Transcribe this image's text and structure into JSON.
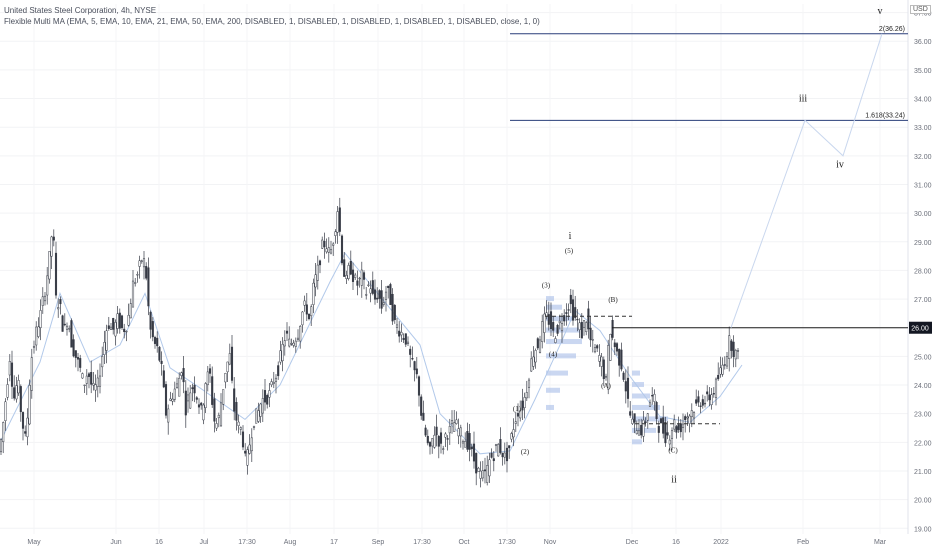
{
  "header": {
    "title": "United States Steel Corporation, 4h, NYSE",
    "indicator": "Flexible Multi MA (EMA, 5, EMA, 10, EMA, 21, EMA, 50, EMA, 200, DISABLED, 1, DISABLED, 1, DISABLED, 1, DISABLED, 1, DISABLED, close, 1, 0)"
  },
  "currency": "USD",
  "colors": {
    "up": "#26a69a",
    "down": "#ef5350",
    "candle": "#363a45",
    "ema": "#b2c9ea",
    "target_line": "#2a3f7a",
    "resistance_line": "#1b1b1b",
    "volume_profile": "#9fb6e6",
    "price_tag_bg": "#131722",
    "price_tag_text": "#ffffff"
  },
  "chart_data": {
    "type": "candlestick",
    "y_axis": {
      "range": [
        18.8,
        37.3
      ],
      "ticks": [
        "19.00",
        "20.00",
        "21.00",
        "22.00",
        "23.00",
        "24.00",
        "25.00",
        "26.00",
        "27.00",
        "28.00",
        "29.00",
        "30.00",
        "31.00",
        "32.00",
        "33.00",
        "34.00",
        "35.00",
        "36.00",
        "37.00"
      ]
    },
    "x_axis": {
      "ticks": [
        "May",
        "Jun",
        "16",
        "Jul",
        "17:30",
        "Aug",
        "17",
        "Sep",
        "17:30",
        "Oct",
        "17:30",
        "Nov",
        "Dec",
        "16",
        "2022",
        "Feb",
        "Mar"
      ]
    },
    "price_path": [
      [
        0,
        21.5
      ],
      [
        4,
        22.2
      ],
      [
        8,
        23.6
      ],
      [
        12,
        25.0
      ],
      [
        16,
        23.5
      ],
      [
        20,
        24.2
      ],
      [
        24,
        22.8
      ],
      [
        28,
        22.0
      ],
      [
        33,
        24.8
      ],
      [
        38,
        25.8
      ],
      [
        43,
        26.5
      ],
      [
        48,
        27.5
      ],
      [
        53,
        28.8
      ],
      [
        55,
        29.8
      ],
      [
        58,
        27.0
      ],
      [
        62,
        26.8
      ],
      [
        66,
        25.8
      ],
      [
        70,
        26.4
      ],
      [
        74,
        25.4
      ],
      [
        78,
        25.0
      ],
      [
        82,
        24.6
      ],
      [
        86,
        24.0
      ],
      [
        90,
        24.5
      ],
      [
        95,
        23.8
      ],
      [
        100,
        24.0
      ],
      [
        105,
        25.2
      ],
      [
        110,
        26.2
      ],
      [
        115,
        25.9
      ],
      [
        120,
        26.3
      ],
      [
        125,
        25.9
      ],
      [
        130,
        26.2
      ],
      [
        135,
        27.5
      ],
      [
        140,
        27.9
      ],
      [
        145,
        28.5
      ],
      [
        148,
        28.0
      ],
      [
        152,
        26.0
      ],
      [
        156,
        25.5
      ],
      [
        160,
        25.2
      ],
      [
        164,
        24.5
      ],
      [
        168,
        23.0
      ],
      [
        172,
        23.4
      ],
      [
        176,
        23.8
      ],
      [
        180,
        24.0
      ],
      [
        184,
        24.7
      ],
      [
        188,
        23.2
      ],
      [
        192,
        23.8
      ],
      [
        196,
        24.0
      ],
      [
        200,
        23.5
      ],
      [
        204,
        23.0
      ],
      [
        208,
        24.2
      ],
      [
        212,
        24.4
      ],
      [
        216,
        22.8
      ],
      [
        220,
        22.6
      ],
      [
        224,
        23.6
      ],
      [
        228,
        24.6
      ],
      [
        232,
        25.0
      ],
      [
        236,
        23.2
      ],
      [
        240,
        22.6
      ],
      [
        244,
        22.4
      ],
      [
        248,
        21.2
      ],
      [
        252,
        22.0
      ],
      [
        256,
        22.8
      ],
      [
        260,
        23.0
      ],
      [
        264,
        23.5
      ],
      [
        268,
        23.5
      ],
      [
        272,
        23.7
      ],
      [
        276,
        24.2
      ],
      [
        280,
        24.5
      ],
      [
        284,
        25.2
      ],
      [
        288,
        25.8
      ],
      [
        292,
        25.4
      ],
      [
        296,
        25.6
      ],
      [
        300,
        25.8
      ],
      [
        304,
        26.5
      ],
      [
        308,
        26.8
      ],
      [
        312,
        26.2
      ],
      [
        316,
        27.5
      ],
      [
        320,
        28.0
      ],
      [
        324,
        28.8
      ],
      [
        328,
        29.0
      ],
      [
        332,
        28.5
      ],
      [
        336,
        29.2
      ],
      [
        340,
        30.2
      ],
      [
        344,
        28.5
      ],
      [
        348,
        27.5
      ],
      [
        352,
        28.2
      ],
      [
        356,
        27.7
      ],
      [
        360,
        27.5
      ],
      [
        364,
        27.8
      ],
      [
        368,
        27.2
      ],
      [
        372,
        27.6
      ],
      [
        376,
        26.9
      ],
      [
        380,
        27.2
      ],
      [
        384,
        26.7
      ],
      [
        388,
        27.3
      ],
      [
        392,
        27.1
      ],
      [
        396,
        26.2
      ],
      [
        400,
        26.0
      ],
      [
        404,
        25.8
      ],
      [
        408,
        25.6
      ],
      [
        412,
        25.0
      ],
      [
        416,
        24.5
      ],
      [
        420,
        24.2
      ],
      [
        424,
        22.8
      ],
      [
        428,
        22.2
      ],
      [
        432,
        21.6
      ],
      [
        436,
        22.4
      ],
      [
        440,
        22.2
      ],
      [
        444,
        21.7
      ],
      [
        448,
        22.3
      ],
      [
        452,
        22.4
      ],
      [
        456,
        22.7
      ],
      [
        460,
        22.5
      ],
      [
        464,
        22.2
      ],
      [
        468,
        22.1
      ],
      [
        472,
        21.8
      ],
      [
        476,
        21.4
      ],
      [
        480,
        21.0
      ],
      [
        484,
        20.8
      ],
      [
        488,
        20.9
      ],
      [
        492,
        21.4
      ],
      [
        496,
        21.6
      ],
      [
        500,
        21.9
      ],
      [
        504,
        21.7
      ],
      [
        508,
        21.4
      ],
      [
        512,
        21.9
      ],
      [
        516,
        22.6
      ],
      [
        520,
        23.1
      ],
      [
        524,
        23.2
      ],
      [
        528,
        23.7
      ],
      [
        532,
        24.6
      ],
      [
        536,
        25.2
      ],
      [
        540,
        25.4
      ],
      [
        544,
        26.0
      ],
      [
        548,
        26.4
      ],
      [
        552,
        26.2
      ],
      [
        556,
        25.7
      ],
      [
        560,
        26.0
      ],
      [
        564,
        26.3
      ],
      [
        568,
        26.6
      ],
      [
        572,
        26.9
      ],
      [
        576,
        26.4
      ],
      [
        580,
        26.2
      ],
      [
        584,
        25.8
      ],
      [
        588,
        26.4
      ],
      [
        592,
        25.6
      ],
      [
        596,
        25.3
      ],
      [
        600,
        25.1
      ],
      [
        604,
        24.8
      ],
      [
        608,
        24.0
      ],
      [
        612,
        26.0
      ],
      [
        616,
        25.5
      ],
      [
        620,
        25.0
      ],
      [
        624,
        24.7
      ],
      [
        628,
        23.9
      ],
      [
        632,
        23.0
      ],
      [
        636,
        22.5
      ],
      [
        640,
        22.6
      ],
      [
        644,
        22.4
      ],
      [
        648,
        22.8
      ],
      [
        652,
        23.4
      ],
      [
        656,
        23.6
      ],
      [
        660,
        22.6
      ],
      [
        664,
        22.5
      ],
      [
        668,
        22.2
      ],
      [
        672,
        22.3
      ],
      [
        676,
        22.7
      ],
      [
        680,
        22.4
      ],
      [
        684,
        22.6
      ],
      [
        688,
        22.9
      ],
      [
        692,
        23.0
      ],
      [
        696,
        23.2
      ],
      [
        700,
        23.3
      ],
      [
        704,
        23.5
      ],
      [
        708,
        23.4
      ],
      [
        712,
        23.6
      ],
      [
        716,
        23.8
      ],
      [
        720,
        24.2
      ],
      [
        724,
        24.6
      ],
      [
        728,
        25.0
      ],
      [
        732,
        25.6
      ],
      [
        736,
        25.2
      ],
      [
        740,
        25.0
      ]
    ],
    "ema_path": [
      [
        0,
        22.0
      ],
      [
        40,
        24.8
      ],
      [
        60,
        27.2
      ],
      [
        90,
        24.8
      ],
      [
        120,
        25.4
      ],
      [
        145,
        27.2
      ],
      [
        170,
        24.6
      ],
      [
        200,
        23.9
      ],
      [
        245,
        22.8
      ],
      [
        280,
        24.0
      ],
      [
        330,
        27.6
      ],
      [
        345,
        28.6
      ],
      [
        380,
        27.1
      ],
      [
        420,
        25.4
      ],
      [
        440,
        23.0
      ],
      [
        480,
        21.6
      ],
      [
        510,
        21.7
      ],
      [
        535,
        23.5
      ],
      [
        560,
        25.4
      ],
      [
        575,
        26.6
      ],
      [
        600,
        25.9
      ],
      [
        630,
        24.3
      ],
      [
        660,
        22.9
      ],
      [
        690,
        22.7
      ],
      [
        720,
        23.6
      ],
      [
        742,
        24.7
      ]
    ],
    "projection_path": [
      [
        731,
        26.0
      ],
      [
        805,
        33.24
      ],
      [
        843,
        32.0
      ],
      [
        882,
        36.26
      ]
    ],
    "horizontal_levels": [
      {
        "label": "2(36.26)",
        "price": 36.26,
        "x_start": 510,
        "x_end": 908
      },
      {
        "label": "1.618(33.24)",
        "price": 33.24,
        "x_start": 510,
        "x_end": 908
      },
      {
        "label": "26.00",
        "price": 26.0,
        "x_start": 612,
        "x_end": 908
      }
    ],
    "dashed_levels": [
      {
        "price": 26.4,
        "x_start": 545,
        "x_end": 632
      },
      {
        "price": 22.65,
        "x_start": 635,
        "x_end": 720
      }
    ],
    "volume_profiles": [
      {
        "x": 546,
        "levels": [
          [
            23.2,
            8
          ],
          [
            23.8,
            14
          ],
          [
            24.4,
            22
          ],
          [
            25.0,
            30
          ],
          [
            25.5,
            36
          ],
          [
            25.9,
            34
          ],
          [
            26.3,
            26
          ],
          [
            26.7,
            16
          ],
          [
            27.0,
            8
          ]
        ]
      },
      {
        "x": 632,
        "levels": [
          [
            22.0,
            10
          ],
          [
            22.4,
            24
          ],
          [
            22.8,
            36
          ],
          [
            23.2,
            28
          ],
          [
            23.6,
            18
          ],
          [
            24.0,
            12
          ],
          [
            24.4,
            8
          ]
        ]
      }
    ],
    "wave_labels": [
      {
        "text": "v",
        "x": 880,
        "price": 36.95,
        "size": 10
      },
      {
        "text": "iii",
        "x": 803,
        "price": 33.9,
        "size": 10
      },
      {
        "text": "iv",
        "x": 840,
        "price": 31.6,
        "size": 10
      },
      {
        "text": "i",
        "x": 570,
        "price": 29.1,
        "size": 10
      },
      {
        "text": "(5)",
        "x": 569,
        "price": 28.6,
        "size": 7
      },
      {
        "text": "(3)",
        "x": 546,
        "price": 27.4,
        "size": 7
      },
      {
        "text": "(B)",
        "x": 613,
        "price": 26.9,
        "size": 7
      },
      {
        "text": "(4)",
        "x": 553,
        "price": 25.0,
        "size": 7
      },
      {
        "text": "(A)",
        "x": 606,
        "price": 23.9,
        "size": 7
      },
      {
        "text": "(1)",
        "x": 517,
        "price": 23.1,
        "size": 7
      },
      {
        "text": "(2)",
        "x": 525,
        "price": 21.6,
        "size": 7
      },
      {
        "text": "(C)",
        "x": 673,
        "price": 21.65,
        "size": 7
      },
      {
        "text": "ii",
        "x": 674,
        "price": 20.6,
        "size": 10
      }
    ]
  }
}
